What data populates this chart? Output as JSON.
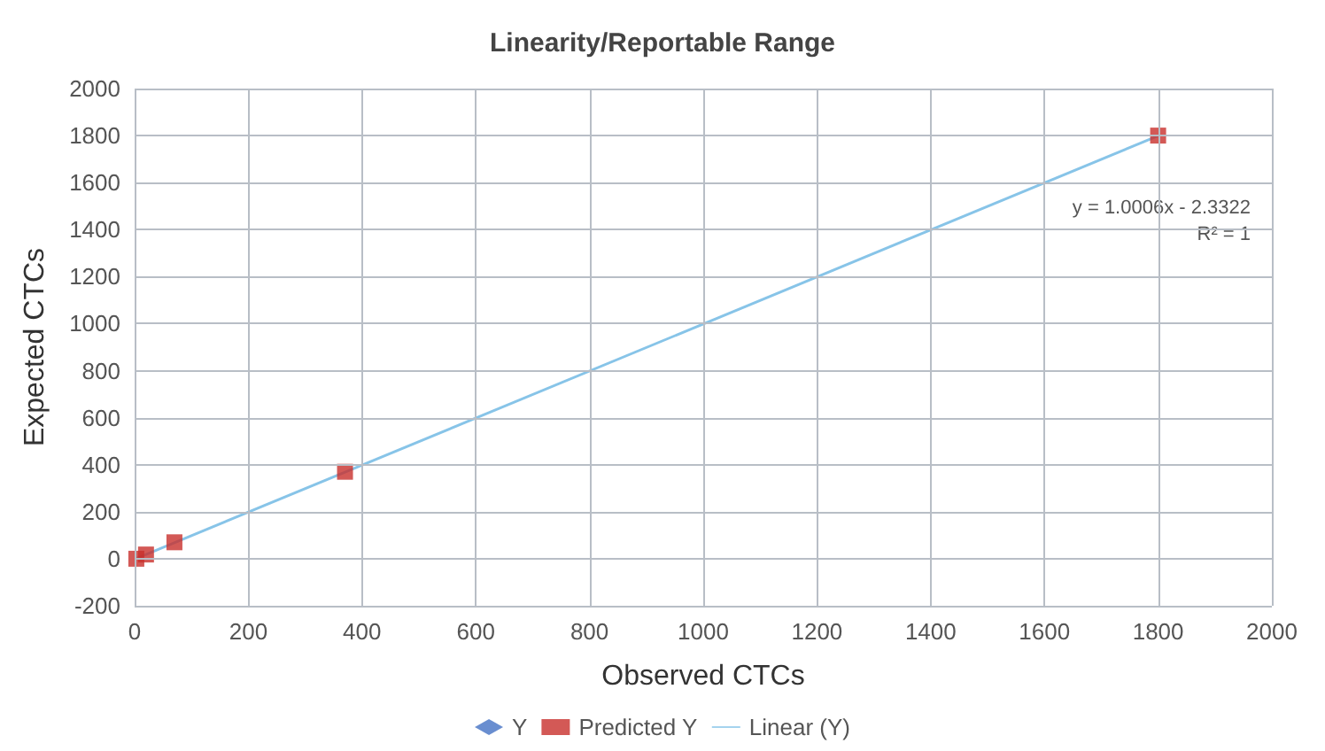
{
  "chart_data": {
    "type": "scatter",
    "title": "Linearity/Reportable Range",
    "xlabel": "Observed CTCs",
    "ylabel": "Expected CTCs",
    "x": [
      3,
      20,
      70,
      370,
      1800
    ],
    "series": [
      {
        "name": "Y",
        "color": "#4472c4",
        "marker": "diamond",
        "values": [
          null,
          null,
          null,
          null,
          null
        ]
      },
      {
        "name": "Predicted Y",
        "color": "#c8302c",
        "marker": "square",
        "values": [
          0,
          18,
          70,
          370,
          1800
        ]
      },
      {
        "name": "Linear (Y)",
        "type": "line",
        "color": "#87c4e8",
        "marker": "none",
        "x": [
          3,
          1800
        ],
        "values": [
          1,
          1799
        ]
      }
    ],
    "xlim": [
      0,
      2000
    ],
    "xticks": [
      0,
      200,
      400,
      600,
      800,
      1000,
      1200,
      1400,
      1600,
      1800,
      2000
    ],
    "ylim": [
      -200,
      2000
    ],
    "yticks": [
      -200,
      0,
      200,
      400,
      600,
      800,
      1000,
      1200,
      1400,
      1600,
      1800,
      2000
    ],
    "grid": true,
    "legend": "bottom",
    "annotations": [
      "y = 1.0006x - 2.3322",
      "R² = 1"
    ]
  }
}
